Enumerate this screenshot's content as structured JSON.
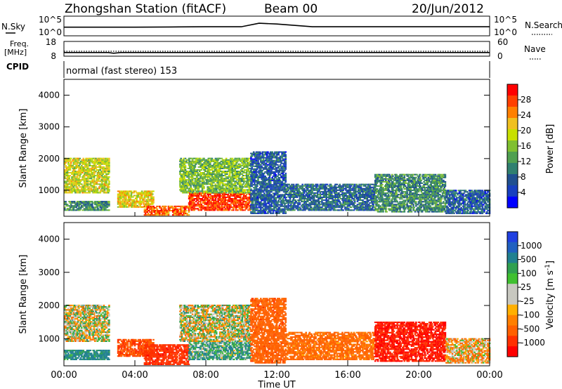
{
  "header": {
    "station": "Zhongshan Station (fitACF)",
    "beam": "Beam 00",
    "date": "20/Jun/2012"
  },
  "aux_panels": {
    "nsky": {
      "label": "N.Sky",
      "right_label": "N.Search",
      "ticks": [
        "10^5",
        "10^0"
      ],
      "right_ticks": [
        "10^5",
        "10^0"
      ]
    },
    "freq": {
      "label_line1": "Freq.",
      "label_line2": "[MHz]",
      "ticks": [
        "18",
        "8"
      ],
      "right_ticks": [
        "60",
        "0"
      ],
      "right_label": "Nave"
    },
    "cpid": {
      "label": "CPID",
      "mode_text": "normal (fast stereo) 153"
    }
  },
  "axes": {
    "ylabel": "Slant Range [km]",
    "yticks": [
      "4000",
      "3000",
      "2000",
      "1000"
    ],
    "yvalues": [
      4000,
      3000,
      2000,
      1000
    ],
    "ylim": [
      180,
      4500
    ],
    "xlabel": "Time UT",
    "xticks": [
      "00:00",
      "04:00",
      "08:00",
      "12:00",
      "16:00",
      "20:00",
      "00:00"
    ],
    "xlim": [
      0,
      24
    ]
  },
  "colorbars": {
    "power": {
      "label": "Power [dB]",
      "ticks": [
        "28",
        "24",
        "20",
        "16",
        "12",
        "8",
        "4"
      ],
      "colors": [
        "#ff0000",
        "#ff4000",
        "#ff8000",
        "#f0c020",
        "#c8e000",
        "#80c030",
        "#50a050",
        "#308070",
        "#205090",
        "#1840c0",
        "#0000ff"
      ]
    },
    "velocity": {
      "label": "Velocity [m s",
      "label_sup": "-1",
      "label_end": "]",
      "ticks": [
        "1000",
        "500",
        "100",
        "25",
        "-25",
        "-100",
        "-500",
        "-1000"
      ],
      "colors": [
        "#2040e0",
        "#2060c0",
        "#208090",
        "#30a050",
        "#40c030",
        "#c8c8c0",
        "#c8c8c0",
        "#ffb000",
        "#ff8000",
        "#ff6000",
        "#ff3000",
        "#ff0000"
      ]
    }
  },
  "chart_data": [
    {
      "type": "line",
      "title": "N.Sky / N.Search",
      "x": [
        0,
        2,
        4,
        6,
        8,
        10,
        11,
        12,
        14,
        16,
        18,
        20,
        22,
        24
      ],
      "series": [
        {
          "name": "N.Sky",
          "values": [
            2.2,
            2.2,
            2.2,
            2.25,
            2.3,
            2.3,
            3.2,
            3.0,
            2.3,
            2.3,
            2.3,
            2.3,
            2.3,
            2.3
          ]
        }
      ]
    },
    {
      "type": "line",
      "title": "Freq. [MHz] / Nave",
      "x": [
        0,
        2.5,
        2.8,
        3.2,
        24
      ],
      "series": [
        {
          "name": "Freq.",
          "values": [
            10.5,
            10.5,
            10.0,
            10.5,
            10.5
          ]
        },
        {
          "name": "Nave",
          "values": [
            20,
            20,
            20,
            20,
            20
          ]
        }
      ]
    },
    {
      "type": "heatmap",
      "title": "Power [dB]",
      "xlabel": "Time UT",
      "ylabel": "Slant Range [km]",
      "xlim": [
        0,
        24
      ],
      "ylim": [
        180,
        4500
      ],
      "patches": [
        {
          "t0": 0.0,
          "t1": 2.5,
          "r0": 900,
          "r1": 2000,
          "value": 18
        },
        {
          "t0": 0.0,
          "t1": 2.5,
          "r0": 350,
          "r1": 650,
          "value": 10
        },
        {
          "t0": 3.0,
          "t1": 5.0,
          "r0": 450,
          "r1": 950,
          "value": 20
        },
        {
          "t0": 4.5,
          "t1": 7.0,
          "r0": 200,
          "r1": 500,
          "value": 26
        },
        {
          "t0": 7.0,
          "t1": 10.5,
          "r0": 350,
          "r1": 900,
          "value": 28
        },
        {
          "t0": 6.5,
          "t1": 10.5,
          "r0": 900,
          "r1": 2000,
          "value": 14
        },
        {
          "t0": 10.5,
          "t1": 12.5,
          "r0": 250,
          "r1": 2200,
          "value": 6
        },
        {
          "t0": 12.5,
          "t1": 17.5,
          "r0": 350,
          "r1": 1200,
          "value": 7
        },
        {
          "t0": 17.5,
          "t1": 21.5,
          "r0": 300,
          "r1": 1500,
          "value": 10
        },
        {
          "t0": 21.5,
          "t1": 24.0,
          "r0": 250,
          "r1": 1000,
          "value": 6
        }
      ]
    },
    {
      "type": "heatmap",
      "title": "Velocity [m s-1]",
      "xlabel": "Time UT",
      "ylabel": "Slant Range [km]",
      "xlim": [
        0,
        24
      ],
      "ylim": [
        180,
        4500
      ],
      "patches": [
        {
          "t0": 0.0,
          "t1": 2.5,
          "r0": 900,
          "r1": 2000,
          "value": 0
        },
        {
          "t0": 0.0,
          "t1": 2.5,
          "r0": 350,
          "r1": 650,
          "value": 150
        },
        {
          "t0": 3.0,
          "t1": 5.0,
          "r0": 450,
          "r1": 950,
          "value": -300
        },
        {
          "t0": 4.5,
          "t1": 7.0,
          "r0": 200,
          "r1": 800,
          "value": -400
        },
        {
          "t0": 7.0,
          "t1": 10.5,
          "r0": 350,
          "r1": 900,
          "value": 80
        },
        {
          "t0": 6.5,
          "t1": 10.5,
          "r0": 900,
          "r1": 2000,
          "value": 0
        },
        {
          "t0": 10.5,
          "t1": 12.5,
          "r0": 250,
          "r1": 2200,
          "value": -200
        },
        {
          "t0": 12.5,
          "t1": 17.5,
          "r0": 350,
          "r1": 1200,
          "value": -150
        },
        {
          "t0": 17.5,
          "t1": 21.5,
          "r0": 300,
          "r1": 1500,
          "value": -500
        },
        {
          "t0": 21.5,
          "t1": 24.0,
          "r0": 250,
          "r1": 1000,
          "value": -60
        }
      ]
    }
  ]
}
